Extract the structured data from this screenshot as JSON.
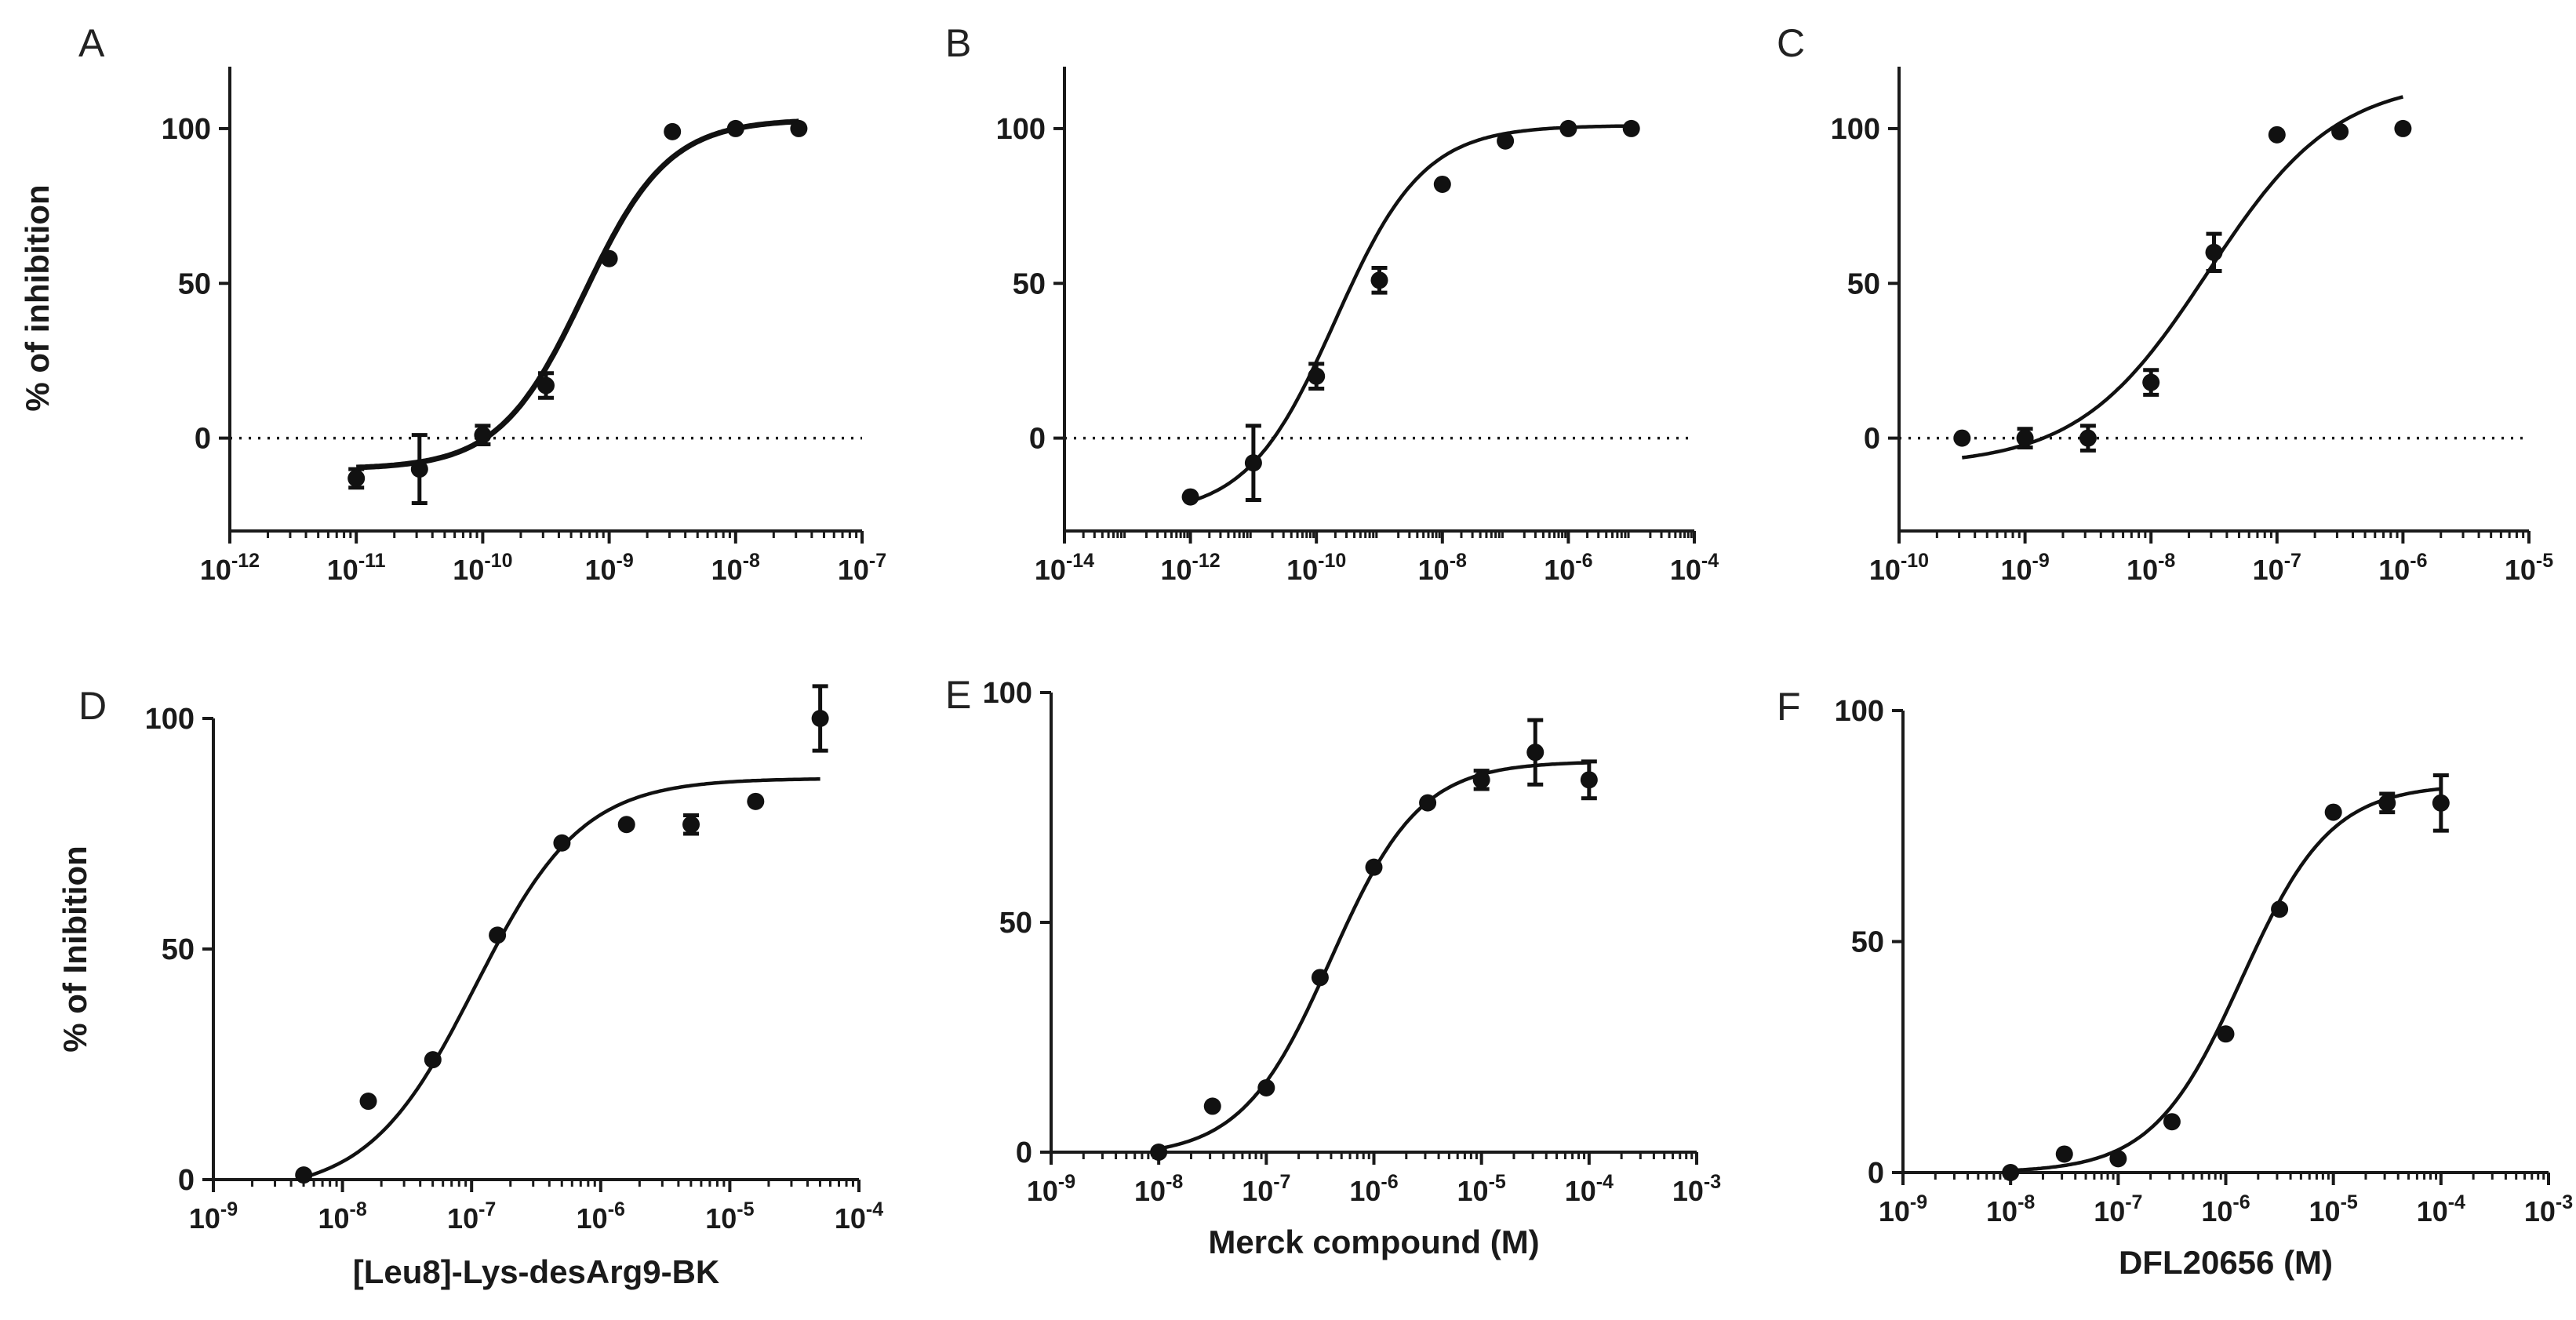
{
  "chart_data": [
    {
      "id": "A",
      "type": "scatter",
      "panel_label": "A",
      "xscale": "log",
      "xlim": [
        -12,
        -7
      ],
      "xticks": [
        -12,
        -11,
        -10,
        -9,
        -8,
        -7
      ],
      "ylim": [
        -30,
        120
      ],
      "yticks": [
        0,
        50,
        100
      ],
      "ylabel": "% of inhibition",
      "xlabel": "",
      "zero_line": true,
      "fit": {
        "bottom": -10,
        "top": 103,
        "log_ic50": -9.2,
        "hill": 1.3,
        "bold": true
      },
      "points": [
        {
          "x": -11,
          "y": -13,
          "err": 3
        },
        {
          "x": -10.5,
          "y": -10,
          "err": 11
        },
        {
          "x": -10,
          "y": 1,
          "err": 3
        },
        {
          "x": -9.5,
          "y": 17,
          "err": 4
        },
        {
          "x": -9,
          "y": 58,
          "err": 0
        },
        {
          "x": -8.5,
          "y": 99,
          "err": 0
        },
        {
          "x": -8,
          "y": 100,
          "err": 0
        },
        {
          "x": -7.5,
          "y": 100,
          "err": 0
        }
      ]
    },
    {
      "id": "B",
      "type": "scatter",
      "panel_label": "B",
      "xscale": "log",
      "xlim": [
        -14,
        -4
      ],
      "xticks": [
        -14,
        -12,
        -10,
        -8,
        -6,
        -4
      ],
      "ylim": [
        -30,
        120
      ],
      "yticks": [
        0,
        50,
        100
      ],
      "ylabel": "",
      "xlabel": "",
      "zero_line": true,
      "fit": {
        "bottom": -25,
        "top": 101,
        "log_ic50": -9.7,
        "hill": 0.62,
        "bold": false
      },
      "points": [
        {
          "x": -12,
          "y": -19,
          "err": 0
        },
        {
          "x": -11,
          "y": -8,
          "err": 12
        },
        {
          "x": -10,
          "y": 20,
          "err": 4
        },
        {
          "x": -9,
          "y": 51,
          "err": 4
        },
        {
          "x": -8,
          "y": 82,
          "err": 0
        },
        {
          "x": -7,
          "y": 96,
          "err": 0
        },
        {
          "x": -6,
          "y": 100,
          "err": 0
        },
        {
          "x": -5,
          "y": 100,
          "err": 0
        }
      ]
    },
    {
      "id": "C",
      "type": "scatter",
      "panel_label": "C",
      "xscale": "log",
      "xlim": [
        -10,
        -5
      ],
      "xticks": [
        -10,
        -9,
        -8,
        -7,
        -6,
        -5
      ],
      "ylim": [
        -30,
        120
      ],
      "yticks": [
        0,
        50,
        100
      ],
      "ylabel": "",
      "xlabel": "",
      "zero_line": true,
      "fit": {
        "bottom": -9,
        "top": 116,
        "log_ic50": -7.55,
        "hill": 0.85,
        "bold": false
      },
      "points": [
        {
          "x": -9.5,
          "y": 0,
          "err": 0
        },
        {
          "x": -9,
          "y": 0,
          "err": 3
        },
        {
          "x": -8.5,
          "y": 0,
          "err": 4
        },
        {
          "x": -8,
          "y": 18,
          "err": 4
        },
        {
          "x": -7.5,
          "y": 60,
          "err": 6
        },
        {
          "x": -7,
          "y": 98,
          "err": 0
        },
        {
          "x": -6.5,
          "y": 99,
          "err": 0
        },
        {
          "x": -6,
          "y": 100,
          "err": 0
        }
      ]
    },
    {
      "id": "D",
      "type": "scatter",
      "panel_label": "D",
      "xscale": "log",
      "xlim": [
        -9,
        -4
      ],
      "xticks": [
        -9,
        -8,
        -7,
        -6,
        -5,
        -4
      ],
      "ylim": [
        0,
        100
      ],
      "yticks": [
        0,
        50,
        100
      ],
      "ylabel": "% of Inibition",
      "xlabel": "[Leu8]-Lys-desArg9-BK",
      "zero_line": false,
      "fit": {
        "bottom": -3,
        "top": 87,
        "log_ic50": -6.97,
        "hill": 1.05,
        "bold": false
      },
      "points": [
        {
          "x": -8.3,
          "y": 1,
          "err": 0
        },
        {
          "x": -7.8,
          "y": 17,
          "err": 0
        },
        {
          "x": -7.3,
          "y": 26,
          "err": 0
        },
        {
          "x": -6.8,
          "y": 53,
          "err": 0
        },
        {
          "x": -6.3,
          "y": 73,
          "err": 0
        },
        {
          "x": -5.8,
          "y": 77,
          "err": 0
        },
        {
          "x": -5.3,
          "y": 77,
          "err": 2
        },
        {
          "x": -4.8,
          "y": 82,
          "err": 0
        },
        {
          "x": -4.3,
          "y": 100,
          "err": 7
        }
      ]
    },
    {
      "id": "E",
      "type": "scatter",
      "panel_label": "E",
      "xscale": "log",
      "xlim": [
        -9,
        -3
      ],
      "xticks": [
        -9,
        -8,
        -7,
        -6,
        -5,
        -4,
        -3
      ],
      "ylim": [
        0,
        100
      ],
      "yticks": [
        0,
        50,
        100
      ],
      "ylabel": "",
      "xlabel": "Merck compound (M)",
      "zero_line": false,
      "fit": {
        "bottom": -1,
        "top": 85,
        "log_ic50": -6.4,
        "hill": 1.05,
        "bold": false
      },
      "points": [
        {
          "x": -8,
          "y": 0,
          "err": 0
        },
        {
          "x": -7.5,
          "y": 10,
          "err": 0
        },
        {
          "x": -7,
          "y": 14,
          "err": 0
        },
        {
          "x": -6.5,
          "y": 38,
          "err": 0
        },
        {
          "x": -6,
          "y": 62,
          "err": 0
        },
        {
          "x": -5.5,
          "y": 76,
          "err": 0
        },
        {
          "x": -5,
          "y": 81,
          "err": 2
        },
        {
          "x": -4.5,
          "y": 87,
          "err": 7
        },
        {
          "x": -4,
          "y": 81,
          "err": 4
        }
      ]
    },
    {
      "id": "F",
      "type": "scatter",
      "panel_label": "F",
      "xscale": "log",
      "xlim": [
        -9,
        -3
      ],
      "xticks": [
        -9,
        -8,
        -7,
        -6,
        -5,
        -4,
        -3
      ],
      "ylim": [
        0,
        100
      ],
      "yticks": [
        0,
        50,
        100
      ],
      "ylabel": "",
      "xlabel": "DFL20656 (M)",
      "zero_line": false,
      "fit": {
        "bottom": 0,
        "top": 84,
        "log_ic50": -5.85,
        "hill": 1.05,
        "bold": false
      },
      "points": [
        {
          "x": -8,
          "y": 0,
          "err": 0
        },
        {
          "x": -7.5,
          "y": 4,
          "err": 0
        },
        {
          "x": -7,
          "y": 3,
          "err": 0
        },
        {
          "x": -6.5,
          "y": 11,
          "err": 0
        },
        {
          "x": -6,
          "y": 30,
          "err": 0
        },
        {
          "x": -5.5,
          "y": 57,
          "err": 0
        },
        {
          "x": -5,
          "y": 78,
          "err": 0
        },
        {
          "x": -4.5,
          "y": 80,
          "err": 2
        },
        {
          "x": -4,
          "y": 80,
          "err": 6
        }
      ]
    }
  ]
}
